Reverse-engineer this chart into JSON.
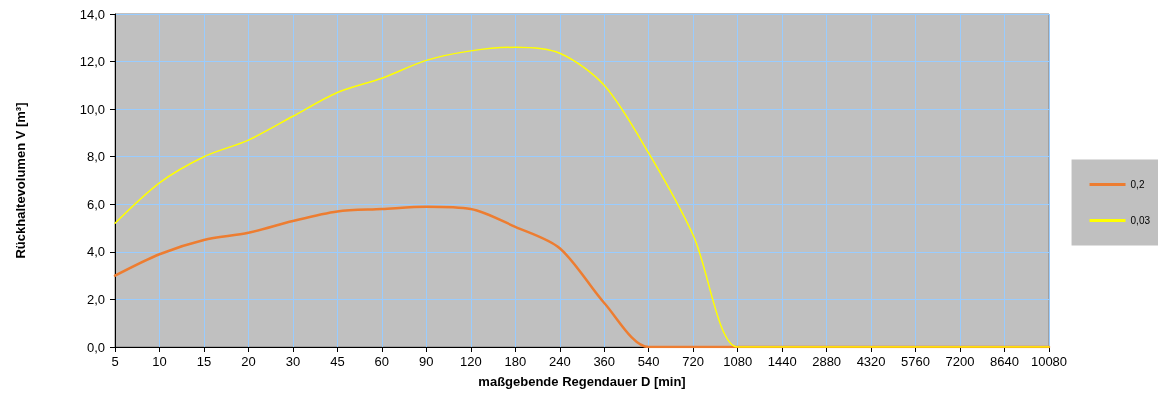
{
  "chart_data": {
    "type": "line",
    "xlabel": "maßgebende Regendauer D [min]",
    "ylabel": "Rückhaltevolumen V [m³]",
    "categories": [
      "5",
      "10",
      "15",
      "20",
      "30",
      "45",
      "60",
      "90",
      "120",
      "180",
      "240",
      "360",
      "540",
      "720",
      "1080",
      "1440",
      "2880",
      "4320",
      "5760",
      "7200",
      "8640",
      "10080"
    ],
    "series": [
      {
        "name": "0,2",
        "color": "#ed7d31",
        "values": [
          3.0,
          3.9,
          4.5,
          4.8,
          5.3,
          5.7,
          5.8,
          5.9,
          5.8,
          5.05,
          4.15,
          1.85,
          0,
          0,
          0,
          0,
          0,
          0,
          0,
          0,
          0,
          0
        ]
      },
      {
        "name": "0,03",
        "color": "#ffff00",
        "values": [
          5.2,
          6.9,
          8.0,
          8.7,
          9.7,
          10.7,
          11.3,
          12.05,
          12.45,
          12.6,
          12.35,
          11.0,
          8.15,
          4.7,
          0,
          0,
          0,
          0,
          0,
          0,
          0,
          0
        ]
      }
    ],
    "ylim": [
      0,
      14
    ],
    "yticks": [
      {
        "value": 0,
        "label": "0,0"
      },
      {
        "value": 2,
        "label": "2,0"
      },
      {
        "value": 4,
        "label": "4,0"
      },
      {
        "value": 6,
        "label": "6,0"
      },
      {
        "value": 8,
        "label": "8,0"
      },
      {
        "value": 10,
        "label": "10,0"
      },
      {
        "value": 12,
        "label": "12,0"
      },
      {
        "value": 14,
        "label": "14,0"
      }
    ],
    "grid": true,
    "legend": "right",
    "marker": "none",
    "line_style": "solid"
  }
}
